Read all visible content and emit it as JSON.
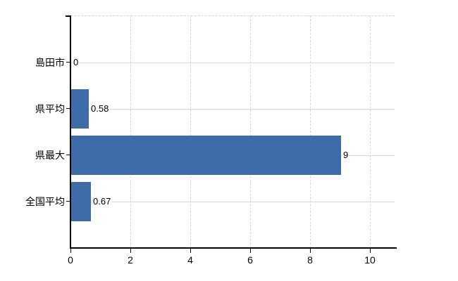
{
  "chart_data": {
    "type": "bar",
    "orientation": "horizontal",
    "title": "",
    "xlabel": "",
    "ylabel": "",
    "categories": [
      "島田市",
      "県平均",
      "県最大",
      "全国平均"
    ],
    "values": [
      0,
      0.58,
      9,
      0.67
    ],
    "value_labels": [
      "0",
      "0.58",
      "9",
      "0.67"
    ],
    "x_ticks": [
      0,
      2,
      4,
      6,
      8,
      10
    ],
    "x_tick_labels": [
      "0",
      "2",
      "4",
      "6",
      "8",
      "10"
    ],
    "xlim": [
      0,
      10.8
    ],
    "grid": true,
    "gridline_horizontal_style": "solid",
    "gridline_vertical_style": "dashed",
    "legend": null,
    "colors": {
      "bar": "#3D6CA9",
      "axis": "#000000",
      "hgrid": "#d3dbd3",
      "vgrid": "#d8d4d8",
      "text": "#000000",
      "background": "#ffffff"
    }
  }
}
